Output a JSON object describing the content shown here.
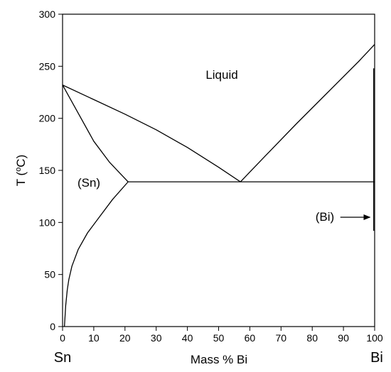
{
  "chart_data": {
    "type": "line",
    "title": "",
    "xlabel": "Mass % Bi",
    "ylabel_main": "T (",
    "ylabel_sup": "o",
    "ylabel_tail": "C)",
    "xlim": [
      0,
      100
    ],
    "ylim": [
      0,
      300
    ],
    "xticks": [
      0,
      10,
      20,
      30,
      40,
      50,
      60,
      70,
      80,
      90,
      100
    ],
    "yticks": [
      0,
      50,
      100,
      150,
      200,
      250,
      300
    ],
    "grid": false,
    "end_labels": {
      "left": "Sn",
      "right": "Bi"
    },
    "region_labels": {
      "liquid": "Liquid",
      "sn": "(Sn)",
      "bi": "(Bi)"
    },
    "series": [
      {
        "id": "liquidus-sn",
        "points": [
          [
            0,
            232
          ],
          [
            10,
            218
          ],
          [
            20,
            204
          ],
          [
            30,
            189
          ],
          [
            40,
            172
          ],
          [
            50,
            153
          ],
          [
            57,
            139
          ]
        ]
      },
      {
        "id": "liquidus-bi",
        "points": [
          [
            57,
            139
          ],
          [
            65,
            164
          ],
          [
            75,
            195
          ],
          [
            85,
            225
          ],
          [
            95,
            255
          ],
          [
            100,
            271
          ]
        ]
      },
      {
        "id": "solidus-sn",
        "points": [
          [
            0,
            232
          ],
          [
            5,
            205
          ],
          [
            10,
            178
          ],
          [
            15,
            158
          ],
          [
            21,
            139
          ]
        ]
      },
      {
        "id": "solvus-sn",
        "points": [
          [
            0.6,
            0
          ],
          [
            1,
            20
          ],
          [
            1.5,
            35
          ],
          [
            2,
            45
          ],
          [
            3,
            58
          ],
          [
            5,
            74
          ],
          [
            8,
            90
          ],
          [
            12,
            106
          ],
          [
            16,
            122
          ],
          [
            21,
            139
          ]
        ]
      },
      {
        "id": "eutectic",
        "points": [
          [
            21,
            139
          ],
          [
            100,
            139
          ]
        ]
      },
      {
        "id": "bi-solid-solution",
        "points": [
          [
            99.7,
            92
          ],
          [
            99.7,
            248
          ]
        ]
      }
    ],
    "annotations": [
      {
        "type": "arrow",
        "from": [
          89,
          105
        ],
        "to": [
          98.5,
          105
        ]
      }
    ]
  }
}
